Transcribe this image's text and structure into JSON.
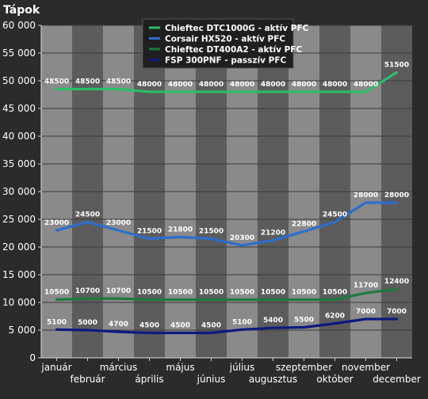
{
  "chart_data": {
    "type": "line",
    "title": "Tápok",
    "xlabel": "",
    "ylabel": "",
    "ylim": [
      0,
      60000
    ],
    "yticks": [
      0,
      5000,
      10000,
      15000,
      20000,
      25000,
      30000,
      35000,
      40000,
      45000,
      50000,
      55000,
      60000
    ],
    "ytick_labels": [
      "0",
      "5 000",
      "10 000",
      "15 000",
      "20 000",
      "25 000",
      "30 000",
      "35 000",
      "40 000",
      "45 000",
      "50 000",
      "55 000",
      "60 000"
    ],
    "categories": [
      "január",
      "február",
      "március",
      "április",
      "május",
      "június",
      "július",
      "augusztus",
      "szeptember",
      "október",
      "november",
      "december"
    ],
    "grid": true,
    "legend_position": "top-center",
    "series": [
      {
        "name": "Chieftec DTC1000G - aktív PFC",
        "color": "#2bbd68",
        "values": [
          48500,
          48500,
          48500,
          48000,
          48000,
          48000,
          48000,
          48000,
          48000,
          48000,
          48000,
          51500
        ]
      },
      {
        "name": "Corsair HX520 - aktív PFC",
        "color": "#2a6fcc",
        "values": [
          23000,
          24500,
          23000,
          21500,
          21800,
          21500,
          20300,
          21200,
          22800,
          24500,
          28000,
          28000
        ]
      },
      {
        "name": "Chieftec DT400A2 - aktív PFC",
        "color": "#1e7a3c",
        "values": [
          10500,
          10700,
          10700,
          10500,
          10500,
          10500,
          10500,
          10500,
          10500,
          10500,
          11700,
          12400
        ]
      },
      {
        "name": "FSP 300PNF - passzív PFC",
        "color": "#0c1a80",
        "values": [
          5100,
          5000,
          4700,
          4500,
          4500,
          4500,
          5100,
          5400,
          5500,
          6200,
          7000,
          7000
        ]
      }
    ]
  }
}
